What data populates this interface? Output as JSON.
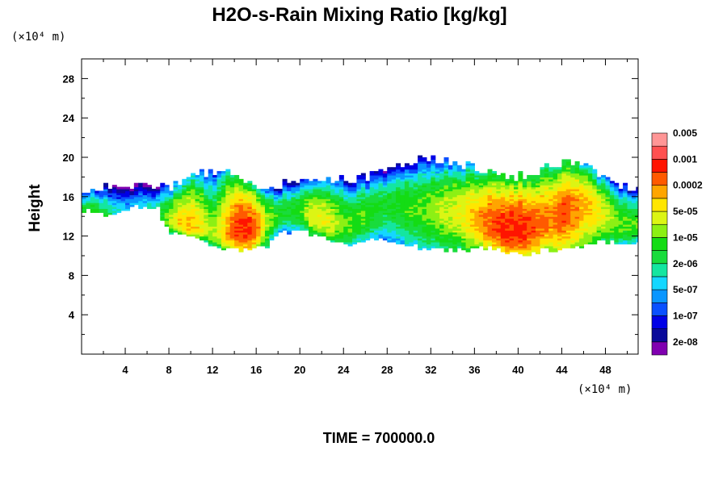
{
  "chart_data": {
    "type": "heatmap",
    "title": "H2O-s-Rain Mixing Ratio [kg/kg]",
    "ylabel": "Height",
    "xlabel": "",
    "x_unit_label": "(×10⁴ m)",
    "y_unit_label": "(×10⁴ m)",
    "xlim": [
      0,
      51
    ],
    "ylim": [
      0,
      30
    ],
    "x_ticks": [
      4,
      8,
      12,
      16,
      20,
      24,
      28,
      32,
      36,
      40,
      44,
      48
    ],
    "y_ticks": [
      4,
      8,
      12,
      16,
      20,
      24,
      28
    ],
    "grid": false,
    "legend_position": "right",
    "colorbar": {
      "colors": [
        "#8000b0",
        "#0a0a9a",
        "#0000e6",
        "#0a50ff",
        "#0a96ff",
        "#14d7ff",
        "#14e6a0",
        "#19dc3c",
        "#14dc14",
        "#8cf014",
        "#dcf514",
        "#ffe600",
        "#ffa500",
        "#ff5a00",
        "#ff1400",
        "#ff5050",
        "#ff9696"
      ],
      "labels": [
        "2e-08",
        "1e-07",
        "5e-07",
        "2e-06",
        "1e-05",
        "5e-05",
        "0.0002",
        "0.001",
        "0.005"
      ]
    },
    "field": {
      "layer_base_km": [
        14.6,
        14.6,
        14.0,
        14.0,
        14.6,
        15.0,
        14.8,
        14.8,
        12.4,
        12.4,
        12.0,
        11.4,
        11.0,
        10.6,
        10.6,
        10.8,
        10.8,
        10.8,
        12.4,
        12.4,
        12.6,
        12.2,
        12.0,
        11.6,
        11.0,
        11.0,
        11.8,
        11.8,
        11.6,
        11.2,
        11.0,
        10.8,
        10.8,
        10.6,
        10.6,
        10.6,
        10.8,
        10.8,
        10.6,
        10.4,
        10.2,
        10.2,
        10.4,
        10.6,
        10.8,
        11.0,
        11.0,
        11.2,
        11.4,
        11.4,
        11.2
      ],
      "layer_top_km": [
        16.0,
        16.4,
        16.8,
        17.2,
        17.6,
        17.6,
        17.0,
        17.0,
        17.0,
        17.6,
        18.2,
        18.4,
        18.6,
        18.8,
        18.4,
        17.6,
        17.2,
        17.0,
        17.2,
        17.4,
        17.6,
        17.4,
        17.4,
        17.6,
        17.8,
        17.8,
        18.0,
        18.6,
        18.8,
        19.2,
        19.6,
        19.8,
        19.8,
        19.6,
        19.4,
        19.2,
        19.0,
        18.8,
        18.4,
        18.2,
        18.0,
        18.2,
        18.8,
        19.2,
        19.4,
        19.4,
        19.0,
        18.6,
        18.0,
        17.6,
        17.0
      ],
      "core_height_km": [
        12.8,
        12.6,
        13.0,
        13.6,
        14.6,
        14.6,
        14.0,
        13.8,
        13.4,
        13.2,
        12.8,
        12.6,
        12.2,
        12.4,
        12.6,
        12.4,
        13.0,
        13.6,
        14.2,
        14.6,
        14.6,
        14.2,
        13.6,
        13.2,
        13.0,
        13.2,
        14.0,
        14.8,
        15.6,
        15.6,
        15.2,
        14.8,
        14.6,
        14.6,
        14.6,
        14.4,
        13.8,
        13.2,
        12.6,
        12.4,
        12.4,
        12.6,
        13.0,
        13.6,
        14.2,
        14.8,
        15.2,
        14.8,
        14.2,
        13.4,
        13.0
      ],
      "log10_peak": [
        -4.4,
        -4.2,
        -4.8,
        -5.6,
        -6.2,
        -6.0,
        -5.6,
        -5.2,
        -4.4,
        -3.8,
        -3.5,
        -4.0,
        -4.6,
        -3.8,
        -3.0,
        -2.8,
        -3.2,
        -4.4,
        -5.0,
        -5.2,
        -4.8,
        -4.2,
        -4.0,
        -4.2,
        -4.6,
        -4.8,
        -4.8,
        -5.0,
        -5.2,
        -5.0,
        -4.8,
        -4.8,
        -4.6,
        -4.4,
        -4.2,
        -4.0,
        -3.6,
        -3.2,
        -3.0,
        -2.8,
        -2.8,
        -3.0,
        -3.2,
        -3.4,
        -3.0,
        -3.2,
        -3.6,
        -3.8,
        -4.2,
        -4.6,
        -4.8
      ]
    },
    "annotations": {
      "time_label": "TIME = 700000.0"
    }
  }
}
